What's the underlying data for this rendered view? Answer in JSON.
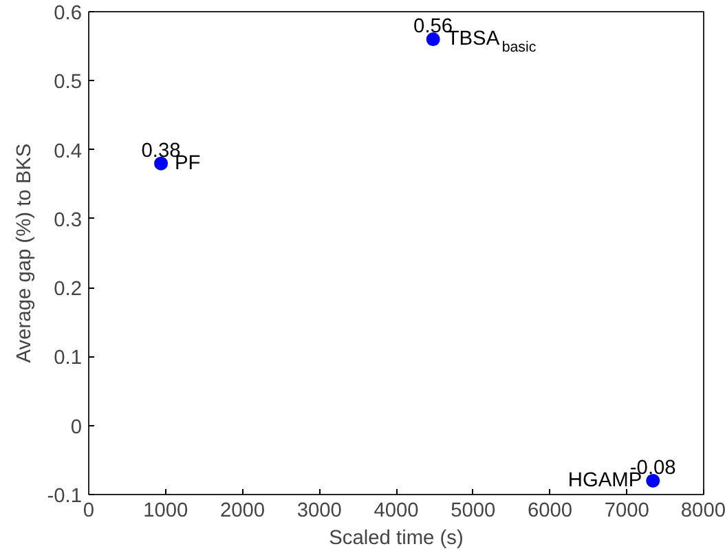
{
  "chart_data": {
    "type": "scatter",
    "xlabel": "Scaled time (s)",
    "ylabel": "Average gap (%) to BKS",
    "x": [
      940,
      4480,
      7340
    ],
    "values": [
      0.38,
      0.56,
      -0.08
    ],
    "color": "#0000ff",
    "marker": "circle",
    "data_labels": true,
    "annotations": [
      {
        "text": "PF",
        "x": 940,
        "y": 0.38
      },
      {
        "text": "TBSA$_{basic}$",
        "x": 4480,
        "y": 0.56
      },
      {
        "text": "HGAMP",
        "x": 7340,
        "y": -0.08
      }
    ],
    "xlim": [
      0,
      8000
    ],
    "xticks": [
      0,
      1000,
      2000,
      3000,
      4000,
      5000,
      6000,
      7000,
      8000
    ],
    "ylim": [
      -0.1,
      0.6
    ],
    "yticks": [
      -0.1,
      0,
      0.1,
      0.2,
      0.3,
      0.4,
      0.5,
      0.6
    ],
    "grid": false
  }
}
